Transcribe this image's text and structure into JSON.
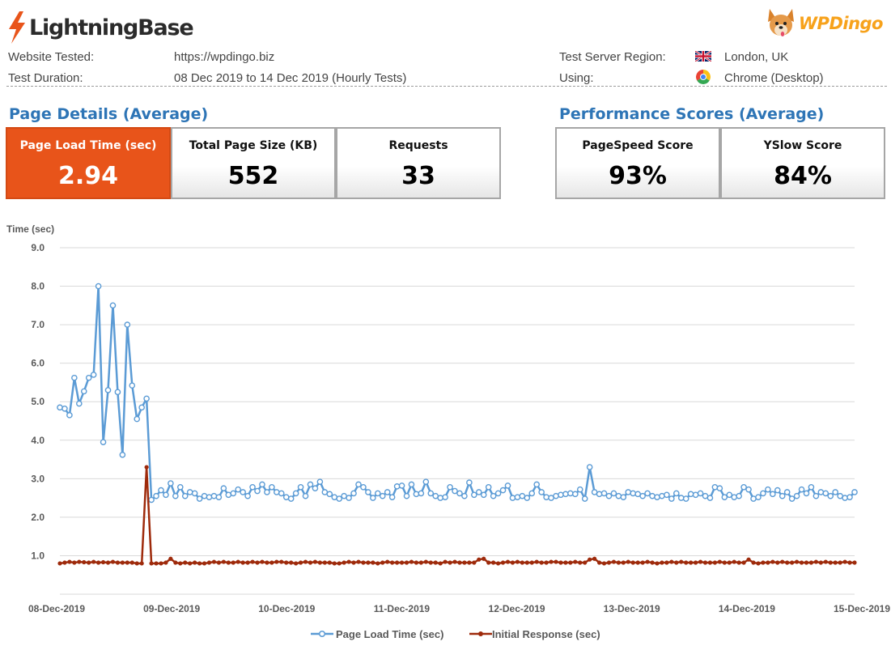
{
  "header": {
    "left_brand": "LightningBase",
    "right_brand": "WPDingo",
    "website_tested_label": "Website Tested:",
    "website_tested": "https://wpdingo.biz",
    "test_duration_label": "Test Duration:",
    "test_duration": "08 Dec 2019 to 14 Dec 2019 (Hourly Tests)",
    "server_region_label": "Test Server Region:",
    "server_region": "London, UK",
    "using_label": "Using:",
    "using": "Chrome (Desktop)",
    "icons": [
      "uk-flag-icon",
      "chrome-icon"
    ]
  },
  "page_details": {
    "title": "Page Details (Average)",
    "cards": [
      {
        "label": "Page Load Time (sec)",
        "value": "2.94"
      },
      {
        "label": "Total Page Size (KB)",
        "value": "552"
      },
      {
        "label": "Requests",
        "value": "33"
      }
    ]
  },
  "performance": {
    "title": "Performance Scores (Average)",
    "cards": [
      {
        "label": "PageSpeed Score",
        "value": "93%"
      },
      {
        "label": "YSlow Score",
        "value": "84%"
      }
    ]
  },
  "colors": {
    "accent": "#e8541a",
    "section_title": "#2e75b6",
    "series_load": "#5b9bd5",
    "series_response": "#9e2a0b"
  },
  "chart_data": {
    "type": "line",
    "ylabel": "Time (sec)",
    "ylim": [
      0,
      9
    ],
    "yticks": [
      "9.0",
      "8.0",
      "7.0",
      "6.0",
      "5.0",
      "4.0",
      "3.0",
      "2.0",
      "1.0"
    ],
    "x_range": [
      "08-Dec-2019",
      "15-Dec-2019"
    ],
    "xticks": [
      "08-Dec-2019",
      "09-Dec-2019",
      "10-Dec-2019",
      "11-Dec-2019",
      "12-Dec-2019",
      "13-Dec-2019",
      "14-Dec-2019",
      "15-Dec-2019"
    ],
    "grid": true,
    "legend_position": "bottom",
    "series": [
      {
        "name": "Page Load Time (sec)",
        "color": "#5b9bd5",
        "marker": "hollow-circle",
        "values": [
          4.85,
          4.82,
          4.65,
          5.62,
          4.95,
          5.27,
          5.62,
          5.7,
          8.0,
          3.95,
          5.3,
          7.5,
          5.25,
          3.62,
          7.0,
          5.42,
          4.55,
          4.85,
          5.08,
          2.45,
          2.55,
          2.7,
          2.58,
          2.88,
          2.55,
          2.78,
          2.55,
          2.65,
          2.62,
          2.48,
          2.55,
          2.52,
          2.55,
          2.52,
          2.75,
          2.58,
          2.62,
          2.72,
          2.65,
          2.55,
          2.78,
          2.68,
          2.85,
          2.65,
          2.78,
          2.65,
          2.62,
          2.52,
          2.48,
          2.62,
          2.78,
          2.55,
          2.85,
          2.75,
          2.92,
          2.65,
          2.6,
          2.52,
          2.48,
          2.55,
          2.5,
          2.62,
          2.85,
          2.78,
          2.65,
          2.5,
          2.62,
          2.55,
          2.65,
          2.52,
          2.8,
          2.82,
          2.55,
          2.85,
          2.6,
          2.62,
          2.92,
          2.62,
          2.55,
          2.5,
          2.52,
          2.78,
          2.68,
          2.62,
          2.55,
          2.9,
          2.58,
          2.65,
          2.58,
          2.78,
          2.55,
          2.62,
          2.7,
          2.82,
          2.5,
          2.52,
          2.55,
          2.5,
          2.62,
          2.85,
          2.65,
          2.52,
          2.5,
          2.55,
          2.58,
          2.6,
          2.62,
          2.6,
          2.72,
          2.48,
          3.3,
          2.65,
          2.6,
          2.62,
          2.55,
          2.62,
          2.55,
          2.52,
          2.65,
          2.62,
          2.6,
          2.55,
          2.62,
          2.55,
          2.52,
          2.55,
          2.58,
          2.48,
          2.62,
          2.5,
          2.48,
          2.6,
          2.58,
          2.62,
          2.55,
          2.5,
          2.78,
          2.75,
          2.52,
          2.58,
          2.52,
          2.55,
          2.78,
          2.72,
          2.48,
          2.52,
          2.62,
          2.72,
          2.6,
          2.7,
          2.55,
          2.65,
          2.48,
          2.55,
          2.72,
          2.62,
          2.78,
          2.55,
          2.65,
          2.62,
          2.55,
          2.65,
          2.55,
          2.5,
          2.52,
          2.65
        ]
      },
      {
        "name": "Initial Response (sec)",
        "color": "#9e2a0b",
        "marker": "filled-circle",
        "values": [
          0.8,
          0.82,
          0.84,
          0.82,
          0.84,
          0.83,
          0.82,
          0.84,
          0.82,
          0.83,
          0.82,
          0.84,
          0.82,
          0.82,
          0.82,
          0.82,
          0.8,
          0.8,
          3.3,
          0.8,
          0.8,
          0.8,
          0.82,
          0.92,
          0.82,
          0.8,
          0.82,
          0.8,
          0.82,
          0.8,
          0.8,
          0.82,
          0.84,
          0.82,
          0.84,
          0.82,
          0.82,
          0.84,
          0.82,
          0.82,
          0.84,
          0.82,
          0.84,
          0.82,
          0.82,
          0.84,
          0.84,
          0.82,
          0.82,
          0.8,
          0.82,
          0.84,
          0.82,
          0.84,
          0.82,
          0.82,
          0.82,
          0.8,
          0.8,
          0.82,
          0.84,
          0.82,
          0.84,
          0.82,
          0.82,
          0.82,
          0.8,
          0.82,
          0.84,
          0.82,
          0.82,
          0.82,
          0.82,
          0.84,
          0.82,
          0.82,
          0.84,
          0.82,
          0.82,
          0.8,
          0.84,
          0.82,
          0.84,
          0.82,
          0.82,
          0.82,
          0.82,
          0.9,
          0.92,
          0.82,
          0.82,
          0.8,
          0.82,
          0.84,
          0.82,
          0.84,
          0.82,
          0.82,
          0.82,
          0.84,
          0.82,
          0.82,
          0.84,
          0.84,
          0.82,
          0.82,
          0.82,
          0.84,
          0.82,
          0.82,
          0.9,
          0.92,
          0.82,
          0.8,
          0.82,
          0.84,
          0.82,
          0.82,
          0.84,
          0.82,
          0.82,
          0.82,
          0.84,
          0.82,
          0.8,
          0.82,
          0.82,
          0.84,
          0.82,
          0.84,
          0.82,
          0.82,
          0.82,
          0.84,
          0.82,
          0.82,
          0.82,
          0.84,
          0.82,
          0.82,
          0.84,
          0.82,
          0.82,
          0.9,
          0.82,
          0.8,
          0.82,
          0.82,
          0.84,
          0.82,
          0.84,
          0.82,
          0.82,
          0.84,
          0.82,
          0.82,
          0.82,
          0.84,
          0.82,
          0.84,
          0.82,
          0.82,
          0.82,
          0.84,
          0.82,
          0.82
        ]
      }
    ]
  }
}
